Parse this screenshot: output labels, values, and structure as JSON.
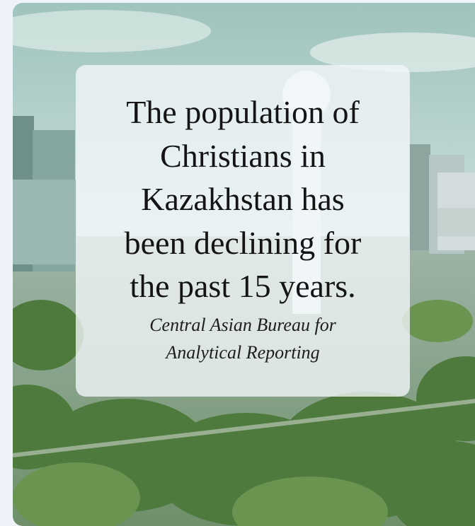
{
  "quote": {
    "lines": [
      "The population of",
      "Christians in",
      "Kazakhstan has",
      "been declining for",
      "the past 15 years."
    ]
  },
  "citation": {
    "lines": [
      "Central Asian Bureau for",
      "Analytical Reporting"
    ]
  }
}
